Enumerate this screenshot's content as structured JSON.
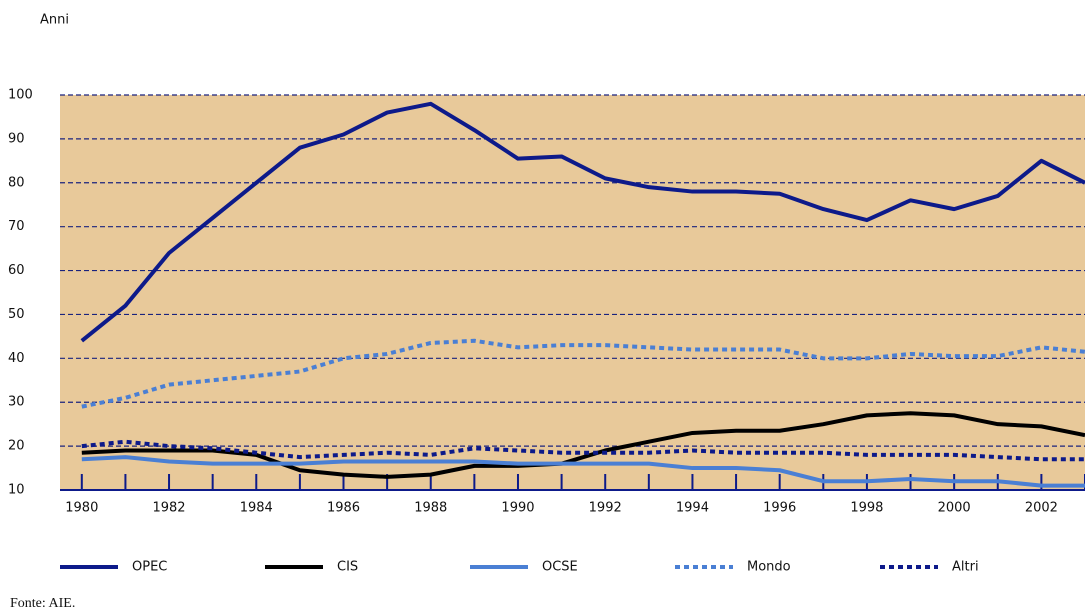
{
  "chart_data": {
    "type": "line",
    "y_label": "Anni",
    "source": "Fonte: AIE.",
    "x": [
      1980,
      1981,
      1982,
      1983,
      1984,
      1985,
      1986,
      1987,
      1988,
      1989,
      1990,
      1991,
      1992,
      1993,
      1994,
      1995,
      1996,
      1997,
      1998,
      1999,
      2000,
      2001,
      2002,
      2003
    ],
    "xlim": [
      1979.5,
      2003
    ],
    "xticks": [
      1980,
      1982,
      1984,
      1986,
      1988,
      1990,
      1992,
      1994,
      1996,
      1998,
      2000,
      2002
    ],
    "xticks_minor": [
      1981,
      1983,
      1985,
      1987,
      1989,
      1991,
      1993,
      1995,
      1997,
      1999,
      2001,
      2003
    ],
    "ylim": [
      10,
      100
    ],
    "yticks": [
      10,
      20,
      30,
      40,
      50,
      60,
      70,
      80,
      90,
      100
    ],
    "grid": true,
    "series": [
      {
        "name": "OPEC",
        "color": "#0d1a8a",
        "dashed": false,
        "values": [
          44,
          52,
          64,
          72,
          80,
          88,
          91,
          96,
          98,
          92,
          85.5,
          86,
          81,
          79,
          78,
          78,
          77.5,
          74,
          71.5,
          76,
          74,
          77,
          85,
          80
        ]
      },
      {
        "name": "CIS",
        "color": "#000000",
        "dashed": false,
        "values": [
          18.5,
          19,
          19,
          19,
          18,
          14.5,
          13.5,
          13,
          13.5,
          15.5,
          15.5,
          16,
          19,
          21,
          23,
          23.5,
          23.5,
          25,
          27,
          27.5,
          27,
          25,
          24.5,
          22.5
        ]
      },
      {
        "name": "OCSE",
        "color": "#4a7fd4",
        "dashed": false,
        "values": [
          17,
          17.5,
          16.5,
          16,
          16,
          16,
          16.5,
          16.5,
          16.5,
          16.5,
          16,
          16,
          16,
          16,
          15,
          15,
          14.5,
          12,
          12,
          12.5,
          12,
          12,
          11,
          11
        ]
      },
      {
        "name": "Mondo",
        "color": "#4a7fd4",
        "dashed": true,
        "values": [
          29,
          31,
          34,
          35,
          36,
          37,
          40,
          41,
          43.5,
          44,
          42.5,
          43,
          43,
          42.5,
          42,
          42,
          42,
          40,
          40,
          41,
          40.5,
          40.5,
          42.5,
          41.5
        ]
      },
      {
        "name": "Altri",
        "color": "#0d1a8a",
        "dashed": true,
        "values": [
          20,
          21,
          20,
          19.5,
          18.5,
          17.5,
          18,
          18.5,
          18,
          19.5,
          19,
          18.5,
          18.5,
          18.5,
          19,
          18.5,
          18.5,
          18.5,
          18,
          18,
          18,
          17.5,
          17,
          17
        ]
      }
    ]
  }
}
